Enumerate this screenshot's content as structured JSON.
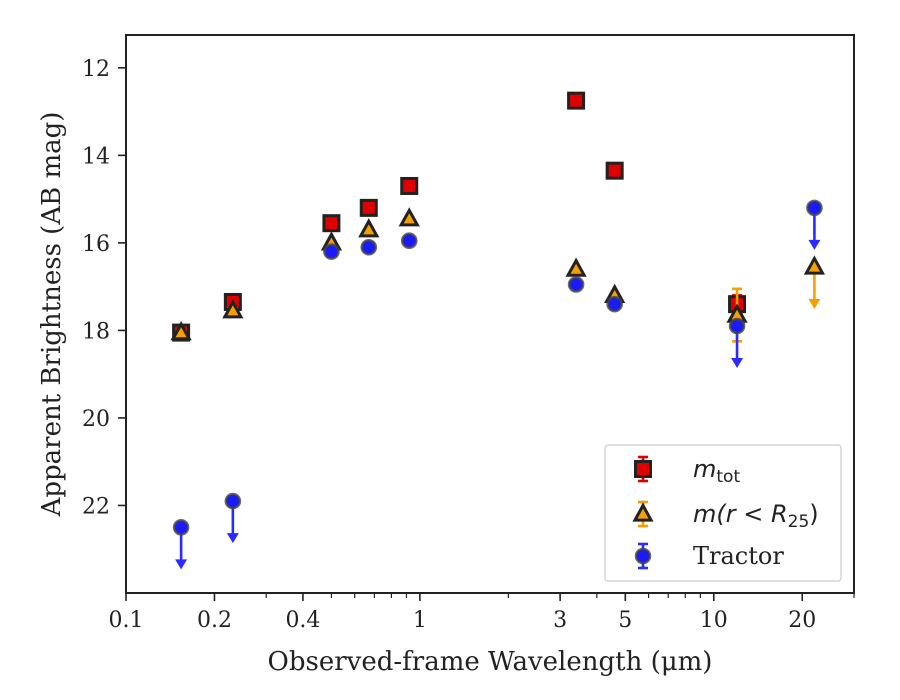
{
  "chart_data": {
    "type": "scatter",
    "xlabel": "Observed-frame Wavelength (μm)",
    "ylabel": "Apparent Brightness (AB mag)",
    "x_scale": "log",
    "y_inverted": true,
    "xlim": [
      0.1,
      30
    ],
    "ylim": [
      24,
      11.25
    ],
    "x_ticks": [
      0.1,
      0.2,
      0.4,
      1,
      3,
      5,
      10,
      20
    ],
    "x_tick_labels": [
      "0.1",
      "0.2",
      "0.4",
      "1",
      "3",
      "5",
      "10",
      "20"
    ],
    "y_ticks": [
      12,
      14,
      16,
      18,
      20,
      22
    ],
    "y_tick_labels": [
      "12",
      "14",
      "16",
      "18",
      "20",
      "22"
    ],
    "grid": false,
    "legend_position": "bottom-right",
    "legend": [
      {
        "series": "mtot",
        "base": "m",
        "sub": "tot",
        "sup_expr": ""
      },
      {
        "series": "m_r25",
        "text": "m(r < R",
        "sub": "25",
        "close": ")"
      },
      {
        "series": "tractor",
        "text": "Tractor"
      }
    ],
    "series": [
      {
        "id": "mtot",
        "marker": "square",
        "color": "#e00000",
        "errcolor": "#e00000",
        "points": [
          {
            "x": 0.154,
            "y": 18.05,
            "err": 0.05
          },
          {
            "x": 0.231,
            "y": 17.35,
            "err": 0.05
          },
          {
            "x": 0.5,
            "y": 15.55,
            "err": 0.04
          },
          {
            "x": 0.67,
            "y": 15.2,
            "err": 0.04
          },
          {
            "x": 0.92,
            "y": 14.7,
            "err": 0.04
          },
          {
            "x": 3.4,
            "y": 12.75,
            "err": 0.04
          },
          {
            "x": 4.6,
            "y": 14.35,
            "err": 0.04
          },
          {
            "x": 12.0,
            "y": 17.4,
            "err": 0.2
          }
        ]
      },
      {
        "id": "m_r25",
        "marker": "triangle",
        "color": "#f5a000",
        "errcolor": "#f5a000",
        "points": [
          {
            "x": 0.154,
            "y": 18.05,
            "err": 0.05
          },
          {
            "x": 0.231,
            "y": 17.55,
            "err": 0.05
          },
          {
            "x": 0.5,
            "y": 16.0,
            "err": 0.04
          },
          {
            "x": 0.67,
            "y": 15.7,
            "err": 0.04
          },
          {
            "x": 0.92,
            "y": 15.45,
            "err": 0.04
          },
          {
            "x": 3.4,
            "y": 16.6,
            "err": 0.04
          },
          {
            "x": 4.6,
            "y": 17.2,
            "err": 0.04
          },
          {
            "x": 12.0,
            "y": 17.65,
            "err": 0.6
          },
          {
            "x": 22.0,
            "y": 16.55,
            "upper_limit": true
          }
        ]
      },
      {
        "id": "tractor",
        "marker": "circle",
        "color": "#1a1aff",
        "errcolor": "#2b2bff",
        "points": [
          {
            "x": 0.154,
            "y": 22.5,
            "upper_limit": true
          },
          {
            "x": 0.231,
            "y": 21.9,
            "upper_limit": true
          },
          {
            "x": 0.5,
            "y": 16.2,
            "err": 0.05
          },
          {
            "x": 0.67,
            "y": 16.1,
            "err": 0.05
          },
          {
            "x": 0.92,
            "y": 15.95,
            "err": 0.05
          },
          {
            "x": 3.4,
            "y": 16.95,
            "err": 0.05
          },
          {
            "x": 4.6,
            "y": 17.4,
            "err": 0.05
          },
          {
            "x": 12.0,
            "y": 17.9,
            "upper_limit": true
          },
          {
            "x": 22.0,
            "y": 15.2,
            "upper_limit": true
          }
        ]
      }
    ]
  }
}
